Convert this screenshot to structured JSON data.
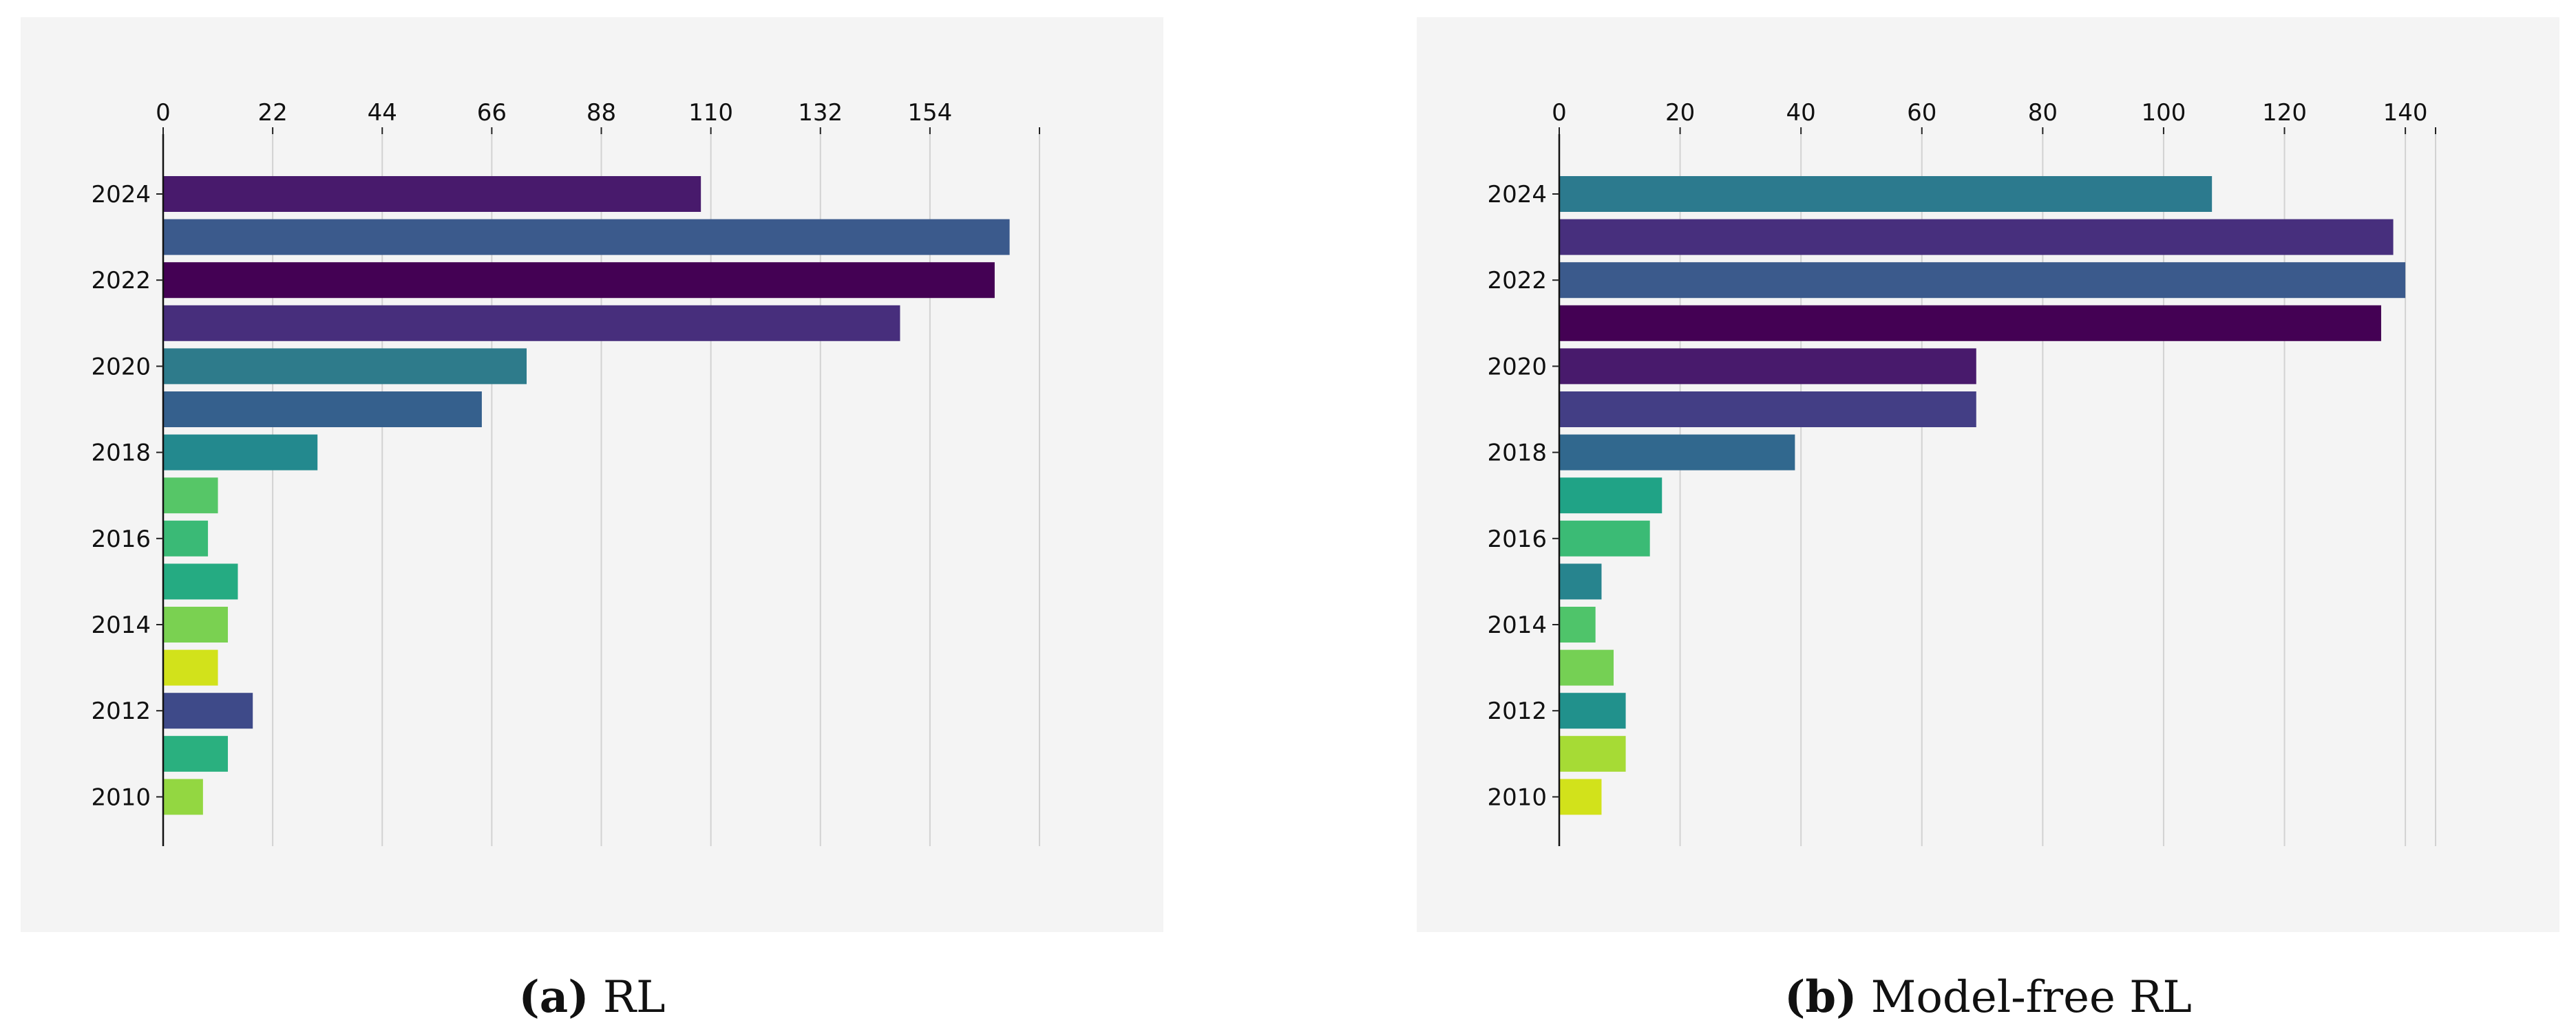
{
  "captions": [
    {
      "tag": "(a)",
      "text": "RL"
    },
    {
      "tag": "(b)",
      "text": "Model-free RL"
    }
  ],
  "chart_data": [
    {
      "type": "bar",
      "orientation": "horizontal",
      "title": "",
      "xlabel": "",
      "ylabel": "",
      "categories": [
        "2024",
        "2023",
        "2022",
        "2021",
        "2020",
        "2019",
        "2018",
        "2017",
        "2016",
        "2015",
        "2014",
        "2013",
        "2012",
        "2011",
        "2010"
      ],
      "values": [
        108,
        170,
        167,
        148,
        73,
        64,
        31,
        11,
        9,
        15,
        13,
        11,
        18,
        13,
        8
      ],
      "colors": [
        "#481a6c",
        "#3b5a8c",
        "#440154",
        "#472e7c",
        "#2e7b8b",
        "#35608d",
        "#23898e",
        "#56c667",
        "#3aba76",
        "#25ab82",
        "#7ad151",
        "#d2e21b",
        "#3e4a89",
        "#2ab07f",
        "#93d741"
      ],
      "x_ticks": [
        0,
        22,
        44,
        66,
        88,
        110,
        132,
        154
      ],
      "xlim": [
        0,
        176
      ],
      "y_tick_labels": [
        "2024",
        "2022",
        "2020",
        "2018",
        "2016",
        "2014",
        "2012",
        "2010"
      ],
      "grid": true,
      "x_axis_position": "top"
    },
    {
      "type": "bar",
      "orientation": "horizontal",
      "title": "",
      "xlabel": "",
      "ylabel": "",
      "categories": [
        "2024",
        "2023",
        "2022",
        "2021",
        "2020",
        "2019",
        "2018",
        "2017",
        "2016",
        "2015",
        "2014",
        "2013",
        "2012",
        "2011",
        "2010"
      ],
      "values": [
        108,
        138,
        140,
        136,
        69,
        69,
        39,
        17,
        15,
        7,
        6,
        9,
        11,
        11,
        7
      ],
      "colors": [
        "#2c7a8e",
        "#472f7d",
        "#3b5a8c",
        "#440154",
        "#481a6c",
        "#433e85",
        "#31688e",
        "#20a386",
        "#3bbb75",
        "#27848e",
        "#4fc46a",
        "#75d054",
        "#21918c",
        "#a6db35",
        "#d2e21b"
      ],
      "x_ticks": [
        0,
        20,
        40,
        60,
        80,
        100,
        120,
        140
      ],
      "xlim": [
        0,
        145
      ],
      "y_tick_labels": [
        "2024",
        "2022",
        "2020",
        "2018",
        "2016",
        "2014",
        "2012",
        "2010"
      ],
      "grid": true,
      "x_axis_position": "top"
    }
  ]
}
